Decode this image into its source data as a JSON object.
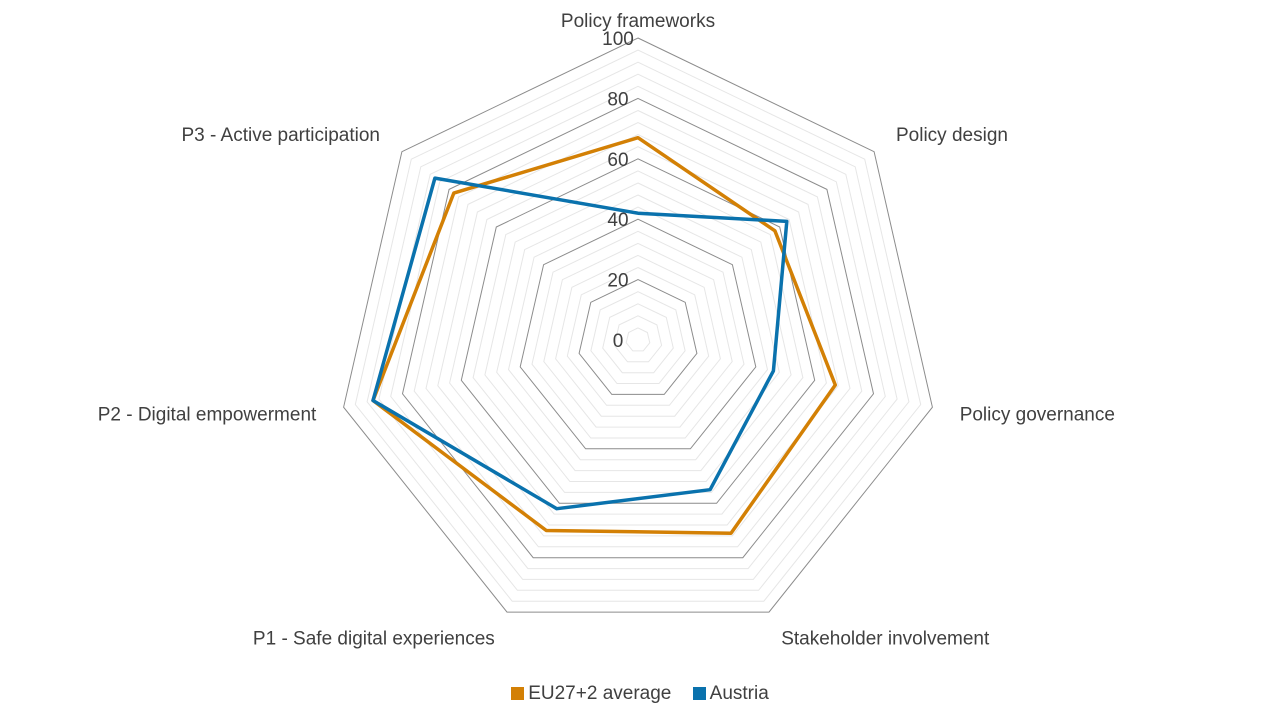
{
  "chart_data": {
    "type": "radar",
    "title": "",
    "axes": [
      "Policy frameworks",
      "Policy design",
      "Policy governance",
      "Stakeholder involvement",
      "P1 - Safe digital experiences",
      "P2 - Digital empowerment",
      "P3 - Active participation"
    ],
    "r_range": [
      0,
      100
    ],
    "ticks": [
      "0",
      "20",
      "40",
      "60",
      "80",
      "100"
    ],
    "tick_values": [
      0,
      20,
      40,
      60,
      80,
      100
    ],
    "minor_grid_step": 4,
    "series": [
      {
        "name": "EU27+2 average",
        "color": "#d38005",
        "values": [
          67,
          58,
          67,
          71,
          70,
          90,
          78
        ]
      },
      {
        "name": "Austria",
        "color": "#0a72ad",
        "values": [
          42,
          63,
          46,
          55,
          62,
          90,
          86
        ]
      }
    ],
    "legend_position": "bottom"
  }
}
